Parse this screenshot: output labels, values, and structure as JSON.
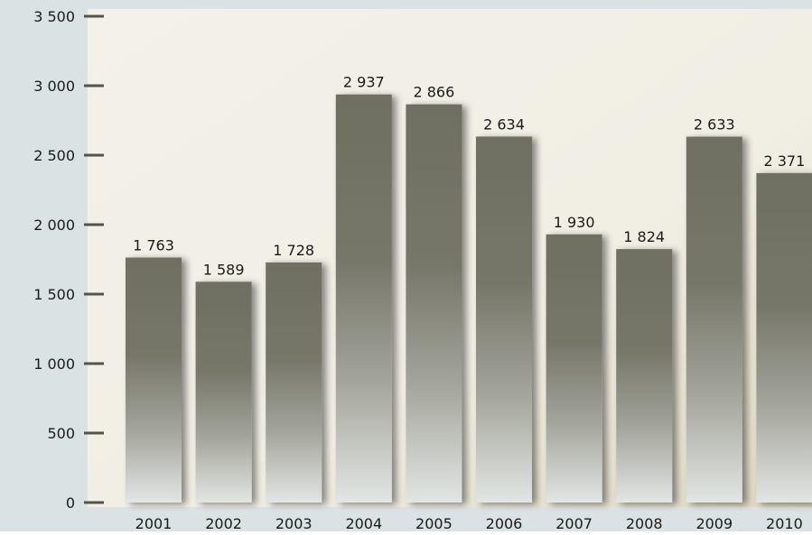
{
  "chart_data": {
    "type": "bar",
    "title": "",
    "xlabel": "",
    "ylabel": "",
    "categories": [
      "2001",
      "2002",
      "2003",
      "2004",
      "2005",
      "2006",
      "2007",
      "2008",
      "2009",
      "2010"
    ],
    "values": [
      1763,
      1589,
      1728,
      2937,
      2866,
      2634,
      1930,
      1824,
      2633,
      2371
    ],
    "value_labels": [
      "1 763",
      "1 589",
      "1 728",
      "2 937",
      "2 866",
      "2 634",
      "1 930",
      "1 824",
      "2 633",
      "2 371"
    ],
    "ylim": [
      0,
      3500
    ],
    "y_ticks": [
      0,
      500,
      1000,
      1500,
      2000,
      2500,
      3000,
      3500
    ],
    "y_tick_labels": [
      "0",
      "500",
      "1 000",
      "1 500",
      "2 000",
      "2 500",
      "3 000",
      "3 500"
    ],
    "grid": false,
    "legend": "none",
    "colors": {
      "bar_top": "#707063",
      "bar_bottom": "#e0e4e2",
      "text": "#1a1a1a",
      "tick": "#545449",
      "outer_bg": "#dbe2e4",
      "plot_bg_top": "#f4f2ea",
      "plot_bg_bottom": "#dcd8c2"
    }
  }
}
